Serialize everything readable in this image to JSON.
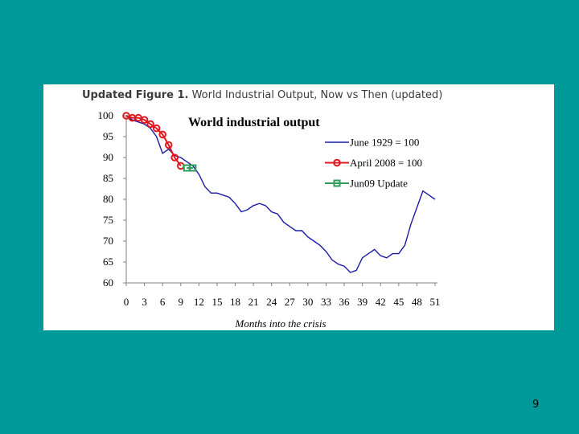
{
  "slide": {
    "page_number": "9"
  },
  "figure": {
    "title_bold": "Updated Figure 1.",
    "title_rest": " World Industrial Output, Now vs Then (updated)"
  },
  "colors": {
    "background": "#009999",
    "series_1929": "#1a1aa6",
    "series_2008": "#e0191e",
    "series_update": "#2e9d5a"
  },
  "chart_data": {
    "type": "line",
    "title": "World industrial output",
    "xlabel": "Months into the crisis",
    "ylabel": "",
    "xlim": [
      0,
      51
    ],
    "ylim": [
      60,
      100
    ],
    "xticks": [
      0,
      3,
      6,
      9,
      12,
      15,
      18,
      21,
      24,
      27,
      30,
      33,
      36,
      39,
      42,
      45,
      48,
      51
    ],
    "yticks": [
      60,
      65,
      70,
      75,
      80,
      85,
      90,
      95,
      100
    ],
    "legend_position": "top-right",
    "series": [
      {
        "name": "June 1929 = 100",
        "marker": "none",
        "x": [
          0,
          1,
          2,
          3,
          4,
          5,
          6,
          7,
          8,
          9,
          10,
          11,
          12,
          13,
          14,
          15,
          16,
          17,
          18,
          19,
          20,
          21,
          22,
          23,
          24,
          25,
          26,
          27,
          28,
          29,
          30,
          31,
          32,
          33,
          34,
          35,
          36,
          37,
          38,
          39,
          40,
          41,
          42,
          43,
          44,
          45,
          46,
          47,
          48,
          49,
          50,
          51
        ],
        "y": [
          100,
          99,
          98.5,
          98,
          97,
          95,
          91,
          92,
          90.5,
          90,
          89,
          88,
          86,
          83,
          81.5,
          81.5,
          81,
          80.5,
          79,
          77,
          77.5,
          78.5,
          79,
          78.5,
          77,
          76.5,
          74.5,
          73.5,
          72.5,
          72.5,
          71,
          70,
          69,
          67.5,
          65.5,
          64.5,
          64,
          62.5,
          63,
          66,
          67,
          68,
          66.5,
          66,
          67,
          67,
          69,
          74,
          78,
          82,
          81,
          80
        ]
      },
      {
        "name": "April 2008 = 100",
        "marker": "circle",
        "x": [
          0,
          1,
          2,
          3,
          4,
          5,
          6,
          7,
          8,
          9
        ],
        "y": [
          100,
          99.5,
          99.5,
          99,
          98,
          97,
          95.5,
          93,
          90,
          88
        ]
      },
      {
        "name": "Jun09 Update",
        "marker": "square",
        "x": [
          10,
          11
        ],
        "y": [
          87.5,
          87.5
        ]
      }
    ]
  }
}
